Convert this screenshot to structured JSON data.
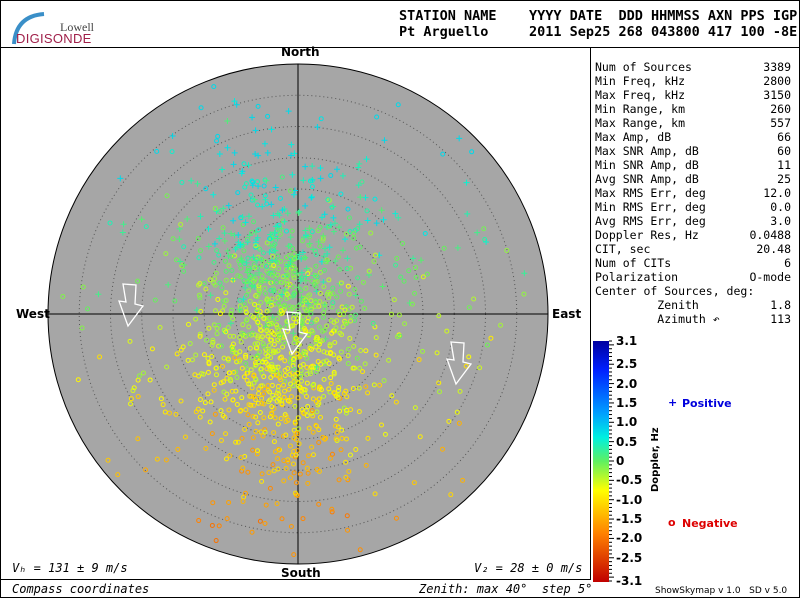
{
  "logo": {
    "line1": "Lowell",
    "line2": "DIGISONDE"
  },
  "header": {
    "row1": "STATION NAME    YYYY DATE  DDD HHMMSS AXN PPS IGP",
    "row2": "Pt Arguello     2011 Sep25 268 043800 417 100 -8E"
  },
  "directions": {
    "north": "North",
    "south": "South",
    "east": "East",
    "west": "West"
  },
  "stats": [
    {
      "label": "Num of Sources",
      "value": "3389"
    },
    {
      "label": "Min Freq, kHz",
      "value": "2800"
    },
    {
      "label": "Max Freq, kHz",
      "value": "3150"
    },
    {
      "label": "Min Range, km",
      "value": "260"
    },
    {
      "label": "Max Range, km",
      "value": "557"
    },
    {
      "label": "Max Amp, dB",
      "value": "66"
    },
    {
      "label": "Max SNR Amp, dB",
      "value": "60"
    },
    {
      "label": "Min SNR Amp, dB",
      "value": "11"
    },
    {
      "label": "Avg SNR Amp, dB",
      "value": "25"
    },
    {
      "label": "Max RMS Err, deg",
      "value": "12.0"
    },
    {
      "label": "Min RMS Err, deg",
      "value": "0.0"
    },
    {
      "label": "Avg RMS Err, deg",
      "value": "3.0"
    },
    {
      "label": "Doppler Res, Hz",
      "value": "0.0488"
    },
    {
      "label": "CIT, sec",
      "value": "20.48"
    },
    {
      "label": "Num of CITs",
      "value": "6"
    },
    {
      "label": "Polarization",
      "value": "O-mode"
    },
    {
      "label": "Center of Sources, deg:",
      "value": ""
    },
    {
      "label": "         Zenith",
      "value": "1.8"
    },
    {
      "label": "         Azimuth ↶",
      "value": "113"
    }
  ],
  "captions": {
    "vh": "Vₕ = 131 ± 9 m/s",
    "vz": "V₂ = 28 ± 0 m/s",
    "coords": "Compass coordinates",
    "zenith": "Zenith: max 40°  step 5°",
    "version": "ShowSkymap v 1.0   SD v 5.0"
  },
  "chart_data": {
    "type": "scatter",
    "projection": "polar-skymap",
    "zenith_max_deg": 40,
    "zenith_step_deg": 5,
    "colorbar": {
      "label": "Doppler, Hz",
      "range": [
        -3.1,
        3.1
      ],
      "ticks": [
        "3.1",
        "2.5",
        "2.0",
        "1.5",
        "1.0",
        "0.5",
        "0",
        "-0.5",
        "-1.0",
        "-1.5",
        "-2.0",
        "-2.5",
        "-3.1"
      ]
    },
    "legend": {
      "positive": "Positive",
      "negative": "Negative",
      "positive_marker": "+",
      "negative_marker": "o",
      "positive_color": "#0000dd",
      "negative_color": "#dd0000"
    },
    "center_of_sources": {
      "zenith": 1.8,
      "azimuth": 113
    }
  },
  "colors": {
    "plot_bg": "#a6a6a6"
  }
}
